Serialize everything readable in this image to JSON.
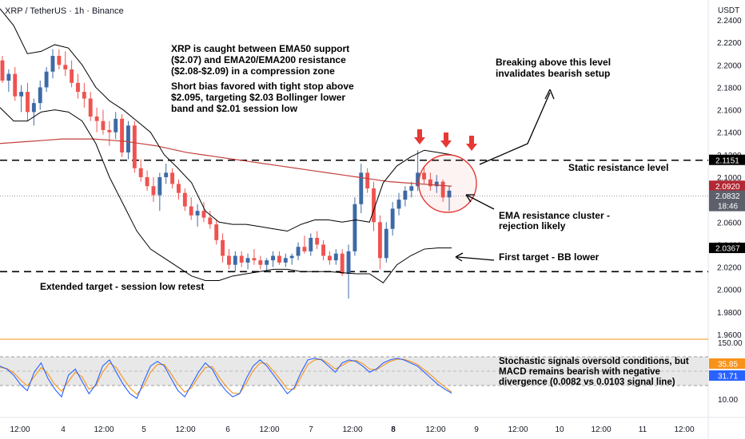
{
  "header": {
    "title": "XRP / TetherUS · 1h · Binance",
    "currency": "USDT"
  },
  "annotations": {
    "main_note_1": "XRP is caught between EMA50 support\n($2.07) and EMA20/EMA200 resistance\n($2.08-$2.09) in a compression zone",
    "main_note_2": "Short bias favored with tight stop above\n$2.095, targeting $2.03 Bollinger lower\nband and $2.01 session low",
    "breakout_note": "Breaking above this level\ninvalidates bearish setup",
    "static_resistance": "Static resistance level",
    "ema_cluster": "EMA resistance cluster -\nrejection likely",
    "first_target": "First target - BB lower",
    "extended_target": "Extended target - session low retest",
    "oscillator_note": "Stochastic signals oversold conditions, but\nMACD remains bearish with negative\ndivergence (0.0082 vs 0.0103 signal line)"
  },
  "price_axis": {
    "labels": [
      "2.2400",
      "2.2200",
      "2.2000",
      "2.1800",
      "2.1600",
      "2.1400",
      "2.1200",
      "2.1000",
      "2.0800",
      "2.0600",
      "2.0400",
      "2.0200",
      "2.0000",
      "1.9800",
      "1.9600"
    ],
    "values": [
      2.24,
      2.22,
      2.2,
      2.18,
      2.16,
      2.14,
      2.12,
      2.1,
      2.08,
      2.06,
      2.04,
      2.02,
      2.0,
      1.98,
      1.96
    ],
    "badges": [
      {
        "value": 2.1151,
        "text": "2.1151",
        "bg": "#000000",
        "fg": "#ffffff"
      },
      {
        "value": 2.092,
        "text": "2.0920",
        "bg": "#b22833",
        "fg": "#ffffff"
      },
      {
        "value": 2.0832,
        "text": "2.0832",
        "sub": "18:46",
        "bg": "#5d606b",
        "fg": "#ffffff"
      },
      {
        "value": 2.0367,
        "text": "2.0367",
        "bg": "#000000",
        "fg": "#ffffff"
      }
    ]
  },
  "osc_axis": {
    "labels": [
      "150.00",
      "10.00"
    ],
    "badges": [
      {
        "text": "35.85",
        "bg": "#f7931a",
        "fg": "#ffffff"
      },
      {
        "text": "31.71",
        "bg": "#2962ff",
        "fg": "#ffffff"
      }
    ]
  },
  "time_axis": {
    "labels": [
      "12:00",
      "4",
      "12:00",
      "5",
      "12:00",
      "6",
      "12:00",
      "7",
      "12:00",
      "8",
      "12:00",
      "9",
      "12:00",
      "10",
      "12:00",
      "11",
      "12:00"
    ],
    "bold": [
      "8"
    ]
  },
  "colors": {
    "up": "#26a69a",
    "up_body": "#3d6aa6",
    "down": "#ef5350",
    "ema200": "#c2413c",
    "bb": "#000000",
    "stoch_k": "#2962ff",
    "stoch_d": "#f7931a",
    "arrow": "#e53935",
    "divider": "#f7931a"
  },
  "chart_data": {
    "type": "candlestick",
    "symbol": "XRP / TetherUS",
    "timeframe": "1h",
    "ylim": [
      1.95,
      2.255
    ],
    "levels": {
      "static_resistance": 2.1151,
      "session_low": 2.0159
    },
    "x_ticks": [
      "12:00",
      "4",
      "12:00",
      "5",
      "12:00",
      "6",
      "12:00",
      "7",
      "12:00",
      "8",
      "12:00",
      "9",
      "12:00",
      "10",
      "12:00",
      "11",
      "12:00"
    ],
    "candles": [
      [
        2.204,
        2.208,
        2.184,
        2.186
      ],
      [
        2.186,
        2.196,
        2.176,
        2.192
      ],
      [
        2.192,
        2.198,
        2.168,
        2.172
      ],
      [
        2.172,
        2.182,
        2.158,
        2.176
      ],
      [
        2.176,
        2.184,
        2.15,
        2.158
      ],
      [
        2.158,
        2.17,
        2.146,
        2.166
      ],
      [
        2.166,
        2.186,
        2.16,
        2.18
      ],
      [
        2.18,
        2.198,
        2.176,
        2.194
      ],
      [
        2.194,
        2.214,
        2.188,
        2.208
      ],
      [
        2.208,
        2.214,
        2.196,
        2.2
      ],
      [
        2.2,
        2.212,
        2.19,
        2.196
      ],
      [
        2.196,
        2.204,
        2.18,
        2.184
      ],
      [
        2.184,
        2.192,
        2.17,
        2.176
      ],
      [
        2.176,
        2.184,
        2.162,
        2.17
      ],
      [
        2.17,
        2.176,
        2.15,
        2.154
      ],
      [
        2.154,
        2.162,
        2.14,
        2.15
      ],
      [
        2.15,
        2.16,
        2.138,
        2.142
      ],
      [
        2.142,
        2.15,
        2.128,
        2.14
      ],
      [
        2.14,
        2.158,
        2.134,
        2.152
      ],
      [
        2.152,
        2.156,
        2.118,
        2.122
      ],
      [
        2.122,
        2.15,
        2.116,
        2.146
      ],
      [
        2.146,
        2.15,
        2.104,
        2.108
      ],
      [
        2.108,
        2.116,
        2.096,
        2.1
      ],
      [
        2.1,
        2.106,
        2.088,
        2.092
      ],
      [
        2.092,
        2.1,
        2.078,
        2.084
      ],
      [
        2.084,
        2.104,
        2.07,
        2.1
      ],
      [
        2.1,
        2.112,
        2.094,
        2.104
      ],
      [
        2.104,
        2.108,
        2.09,
        2.094
      ],
      [
        2.094,
        2.098,
        2.08,
        2.086
      ],
      [
        2.086,
        2.09,
        2.07,
        2.074
      ],
      [
        2.074,
        2.082,
        2.062,
        2.066
      ],
      [
        2.066,
        2.076,
        2.056,
        2.07
      ],
      [
        2.07,
        2.078,
        2.06,
        2.064
      ],
      [
        2.064,
        2.07,
        2.054,
        2.058
      ],
      [
        2.058,
        2.062,
        2.04,
        2.044
      ],
      [
        2.044,
        2.05,
        2.024,
        2.03
      ],
      [
        2.03,
        2.036,
        2.018,
        2.022
      ],
      [
        2.022,
        2.034,
        2.016,
        2.03
      ],
      [
        2.03,
        2.034,
        2.02,
        2.024
      ],
      [
        2.024,
        2.032,
        2.018,
        2.028
      ],
      [
        2.028,
        2.036,
        2.022,
        2.026
      ],
      [
        2.026,
        2.03,
        2.018,
        2.022
      ],
      [
        2.022,
        2.028,
        2.016,
        2.026
      ],
      [
        2.026,
        2.034,
        2.02,
        2.03
      ],
      [
        2.03,
        2.034,
        2.022,
        2.024
      ],
      [
        2.024,
        2.032,
        2.02,
        2.028
      ],
      [
        2.028,
        2.032,
        2.022,
        2.03
      ],
      [
        2.03,
        2.042,
        2.026,
        2.038
      ],
      [
        2.038,
        2.048,
        2.032,
        2.034
      ],
      [
        2.034,
        2.05,
        2.03,
        2.046
      ],
      [
        2.046,
        2.052,
        2.036,
        2.04
      ],
      [
        2.04,
        2.044,
        2.026,
        2.03
      ],
      [
        2.03,
        2.034,
        2.022,
        2.026
      ],
      [
        2.026,
        2.036,
        2.022,
        2.032
      ],
      [
        2.032,
        2.036,
        2.012,
        2.014
      ],
      [
        2.014,
        2.04,
        1.992,
        2.034
      ],
      [
        2.034,
        2.082,
        2.03,
        2.076
      ],
      [
        2.076,
        2.112,
        2.068,
        2.104
      ],
      [
        2.104,
        2.108,
        2.086,
        2.09
      ],
      [
        2.09,
        2.096,
        2.052,
        2.06
      ],
      [
        2.06,
        2.066,
        2.018,
        2.028
      ],
      [
        2.028,
        2.06,
        2.024,
        2.054
      ],
      [
        2.054,
        2.078,
        2.048,
        2.072
      ],
      [
        2.072,
        2.086,
        2.066,
        2.08
      ],
      [
        2.08,
        2.092,
        2.074,
        2.088
      ],
      [
        2.088,
        2.096,
        2.082,
        2.092
      ],
      [
        2.092,
        2.124,
        2.088,
        2.104
      ],
      [
        2.104,
        2.11,
        2.094,
        2.098
      ],
      [
        2.098,
        2.104,
        2.088,
        2.092
      ],
      [
        2.092,
        2.102,
        2.086,
        2.096
      ],
      [
        2.096,
        2.098,
        2.078,
        2.082
      ],
      [
        2.082,
        2.092,
        2.07,
        2.088
      ]
    ],
    "ema200": [
      2.13,
      2.131,
      2.132,
      2.133,
      2.134,
      2.134,
      2.134,
      2.133,
      2.132,
      2.13,
      2.128,
      2.125,
      2.122,
      2.12,
      2.118,
      2.116,
      2.114,
      2.112,
      2.11,
      2.108,
      2.106,
      2.104,
      2.102,
      2.1,
      2.098,
      2.096,
      2.095,
      2.094,
      2.093,
      2.092
    ],
    "bb_upper": [
      2.25,
      2.235,
      2.21,
      2.212,
      2.218,
      2.215,
      2.2,
      2.18,
      2.168,
      2.16,
      2.15,
      2.14,
      2.12,
      2.108,
      2.095,
      2.07,
      2.06,
      2.058,
      2.058,
      2.056,
      2.054,
      2.052,
      2.058,
      2.062,
      2.062,
      2.06,
      2.062,
      2.06,
      2.095,
      2.11,
      2.118,
      2.124,
      2.122,
      2.12
    ],
    "bb_lower": [
      2.162,
      2.15,
      2.15,
      2.158,
      2.16,
      2.158,
      2.15,
      2.13,
      2.1,
      2.076,
      2.052,
      2.036,
      2.028,
      2.02,
      2.012,
      2.008,
      2.008,
      2.012,
      2.014,
      2.016,
      2.018,
      2.018,
      2.016,
      2.016,
      2.016,
      2.015,
      2.014,
      2.014,
      2.006,
      2.022,
      2.03,
      2.036,
      2.037,
      2.037
    ],
    "oscillator": {
      "stoch_k": 31.71,
      "stoch_d": 35.85,
      "upper_band": 150.0,
      "lower_band": 10.0
    }
  }
}
